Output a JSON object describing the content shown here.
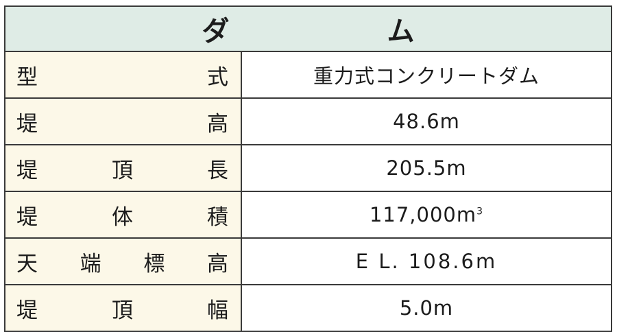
{
  "title_chars": [
    "ダ",
    "ム"
  ],
  "rows": [
    {
      "label_chars": [
        "型",
        "式"
      ],
      "value": "重力式コンクリートダム"
    },
    {
      "label_chars": [
        "堤",
        "高"
      ],
      "value": "48.6m"
    },
    {
      "label_chars": [
        "堤",
        "頂",
        "長"
      ],
      "value": "205.5m"
    },
    {
      "label_chars": [
        "堤",
        "体",
        "積"
      ],
      "value": "117,000m",
      "value_sup": "3"
    },
    {
      "label_chars": [
        "天",
        "端",
        "標",
        "高"
      ],
      "value": "E L. 108.6m"
    },
    {
      "label_chars": [
        "堤",
        "頂",
        "幅"
      ],
      "value": "5.0m"
    }
  ],
  "colors": {
    "header_bg": "#dfece6",
    "label_bg": "#fcf8e8",
    "border": "#3a3a3a"
  }
}
